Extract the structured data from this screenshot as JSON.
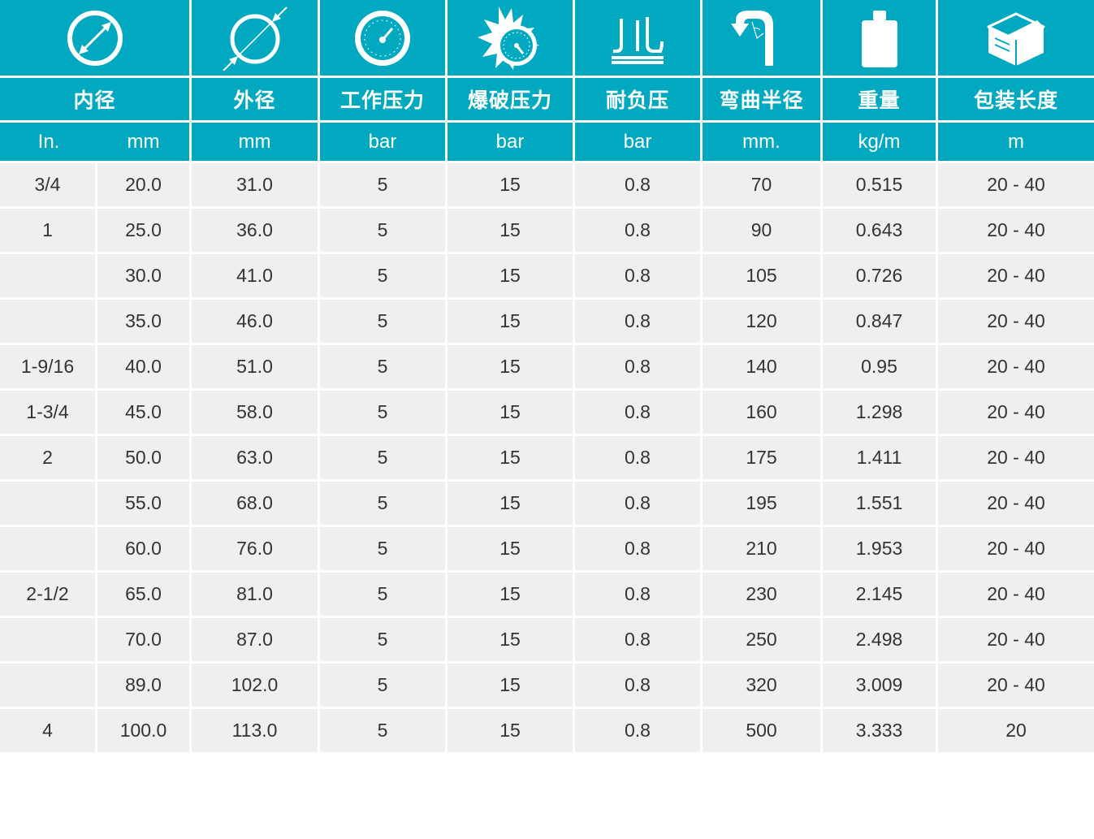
{
  "colors": {
    "header_bg": "#00a9bf",
    "header_text": "#ffffff",
    "row_bg": "#efefef",
    "cell_text": "#333333"
  },
  "icons": [
    "inner-diameter-icon",
    "outer-diameter-icon",
    "working-pressure-gauge-icon",
    "burst-pressure-icon",
    "vacuum-resistance-icon",
    "bend-radius-icon",
    "weight-icon",
    "package-box-icon"
  ],
  "header": {
    "names": [
      "内径",
      "外径",
      "工作压力",
      "爆破压力",
      "耐负压",
      "弯曲半径",
      "重量",
      "包装长度"
    ],
    "units": [
      "In.",
      "mm",
      "mm",
      "bar",
      "bar",
      "bar",
      "mm.",
      "kg/m",
      "m"
    ]
  },
  "rows": [
    [
      "3/4",
      "20.0",
      "31.0",
      "5",
      "15",
      "0.8",
      "70",
      "0.515",
      "20 - 40"
    ],
    [
      "1",
      "25.0",
      "36.0",
      "5",
      "15",
      "0.8",
      "90",
      "0.643",
      "20 - 40"
    ],
    [
      "",
      "30.0",
      "41.0",
      "5",
      "15",
      "0.8",
      "105",
      "0.726",
      "20 - 40"
    ],
    [
      "",
      "35.0",
      "46.0",
      "5",
      "15",
      "0.8",
      "120",
      "0.847",
      "20 - 40"
    ],
    [
      "1-9/16",
      "40.0",
      "51.0",
      "5",
      "15",
      "0.8",
      "140",
      "0.95",
      "20 - 40"
    ],
    [
      "1-3/4",
      "45.0",
      "58.0",
      "5",
      "15",
      "0.8",
      "160",
      "1.298",
      "20 - 40"
    ],
    [
      "2",
      "50.0",
      "63.0",
      "5",
      "15",
      "0.8",
      "175",
      "1.411",
      "20 - 40"
    ],
    [
      "",
      "55.0",
      "68.0",
      "5",
      "15",
      "0.8",
      "195",
      "1.551",
      "20 - 40"
    ],
    [
      "",
      "60.0",
      "76.0",
      "5",
      "15",
      "0.8",
      "210",
      "1.953",
      "20 - 40"
    ],
    [
      "2-1/2",
      "65.0",
      "81.0",
      "5",
      "15",
      "0.8",
      "230",
      "2.145",
      "20 - 40"
    ],
    [
      "",
      "70.0",
      "87.0",
      "5",
      "15",
      "0.8",
      "250",
      "2.498",
      "20 - 40"
    ],
    [
      "",
      "89.0",
      "102.0",
      "5",
      "15",
      "0.8",
      "320",
      "3.009",
      "20 - 40"
    ],
    [
      "4",
      "100.0",
      "113.0",
      "5",
      "15",
      "0.8",
      "500",
      "3.333",
      "20"
    ]
  ]
}
